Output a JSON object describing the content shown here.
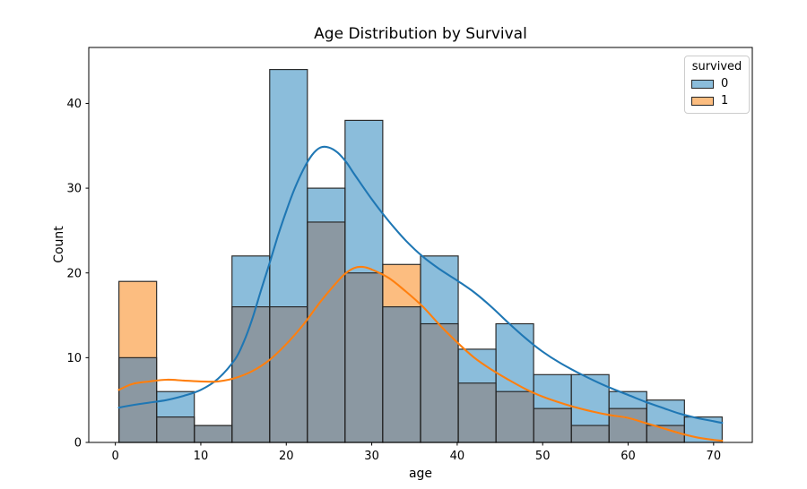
{
  "chart_data": {
    "type": "bar",
    "subtype": "histogram_layered_with_kde",
    "title": "Age Distribution by Survival",
    "xlabel": "age",
    "ylabel": "Count",
    "grid": false,
    "xlim": [
      -3.11,
      74.53
    ],
    "ylim": [
      0,
      46.6
    ],
    "xticks": [
      0,
      10,
      20,
      30,
      40,
      50,
      60,
      70
    ],
    "yticks": [
      0,
      10,
      20,
      30,
      40
    ],
    "bin_edges": [
      0.42,
      4.83,
      9.24,
      13.65,
      18.06,
      22.47,
      26.88,
      31.29,
      35.71,
      40.12,
      44.53,
      48.94,
      53.35,
      57.76,
      62.18,
      66.59,
      71.0
    ],
    "series": [
      {
        "name": "0",
        "color": "#8bbddb",
        "values": [
          10,
          6,
          2,
          22,
          44,
          30,
          38,
          16,
          22,
          11,
          14,
          8,
          8,
          6,
          5,
          3
        ]
      },
      {
        "name": "1",
        "color": "#fcbd80",
        "values": [
          19,
          3,
          2,
          16,
          16,
          26,
          20,
          21,
          14,
          7,
          6,
          4,
          2,
          4,
          2,
          0
        ]
      }
    ],
    "overlap_color": "#8b98a2",
    "bar_edge_color": "#262626",
    "spine_color": "#000000",
    "kde": [
      {
        "name": "0",
        "color": "#1f77b4",
        "points": [
          [
            0.4,
            4.1
          ],
          [
            2,
            4.4
          ],
          [
            4,
            4.7
          ],
          [
            6,
            5.0
          ],
          [
            8,
            5.5
          ],
          [
            10,
            6.2
          ],
          [
            12,
            7.5
          ],
          [
            14,
            9.8
          ],
          [
            15,
            11.8
          ],
          [
            16,
            14.5
          ],
          [
            17,
            17.8
          ],
          [
            18,
            21.0
          ],
          [
            19,
            24.3
          ],
          [
            20,
            27.3
          ],
          [
            21,
            30.0
          ],
          [
            22,
            32.2
          ],
          [
            23,
            33.9
          ],
          [
            24,
            34.8
          ],
          [
            25,
            34.8
          ],
          [
            26,
            34.2
          ],
          [
            27,
            33.1
          ],
          [
            28,
            31.6
          ],
          [
            30,
            28.7
          ],
          [
            32,
            26.1
          ],
          [
            34,
            23.8
          ],
          [
            36,
            21.9
          ],
          [
            38,
            20.4
          ],
          [
            40,
            19.1
          ],
          [
            42,
            17.7
          ],
          [
            44,
            16.0
          ],
          [
            46,
            14.1
          ],
          [
            48,
            12.3
          ],
          [
            50,
            10.7
          ],
          [
            52,
            9.4
          ],
          [
            54,
            8.3
          ],
          [
            56,
            7.3
          ],
          [
            58,
            6.4
          ],
          [
            60,
            5.6
          ],
          [
            62,
            4.8
          ],
          [
            64,
            4.1
          ],
          [
            66,
            3.4
          ],
          [
            68,
            2.9
          ],
          [
            70,
            2.5
          ],
          [
            71,
            2.3
          ]
        ]
      },
      {
        "name": "1",
        "color": "#ff7f0e",
        "points": [
          [
            0.4,
            6.2
          ],
          [
            2,
            6.9
          ],
          [
            4,
            7.2
          ],
          [
            6,
            7.4
          ],
          [
            8,
            7.3
          ],
          [
            10,
            7.2
          ],
          [
            12,
            7.2
          ],
          [
            14,
            7.6
          ],
          [
            16,
            8.4
          ],
          [
            18,
            9.7
          ],
          [
            20,
            11.6
          ],
          [
            22,
            13.9
          ],
          [
            24,
            16.6
          ],
          [
            26,
            19.0
          ],
          [
            27,
            20.0
          ],
          [
            28,
            20.6
          ],
          [
            29,
            20.7
          ],
          [
            30,
            20.4
          ],
          [
            32,
            19.4
          ],
          [
            34,
            17.8
          ],
          [
            36,
            16.0
          ],
          [
            38,
            13.8
          ],
          [
            40,
            11.8
          ],
          [
            42,
            10.0
          ],
          [
            44,
            8.6
          ],
          [
            46,
            7.4
          ],
          [
            48,
            6.3
          ],
          [
            50,
            5.4
          ],
          [
            52,
            4.7
          ],
          [
            54,
            4.1
          ],
          [
            56,
            3.6
          ],
          [
            58,
            3.2
          ],
          [
            60,
            2.9
          ],
          [
            62,
            2.3
          ],
          [
            64,
            1.7
          ],
          [
            66,
            1.1
          ],
          [
            68,
            0.6
          ],
          [
            70,
            0.3
          ],
          [
            71,
            0.2
          ]
        ]
      }
    ],
    "legend": {
      "title": "survived",
      "position": "upper right",
      "entries": [
        {
          "label": "0",
          "color": "#8bbddb"
        },
        {
          "label": "1",
          "color": "#fcbd80"
        }
      ]
    }
  }
}
